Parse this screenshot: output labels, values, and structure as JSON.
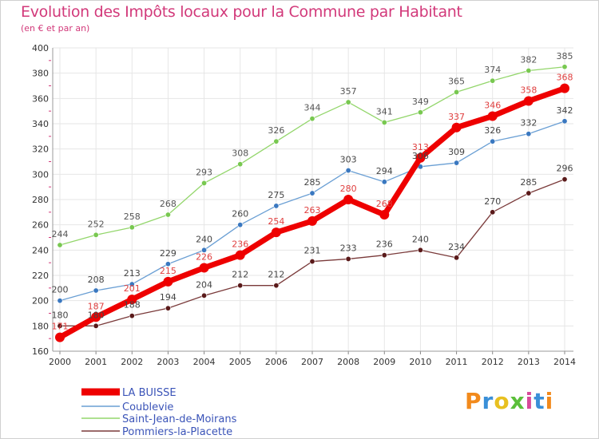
{
  "chart_data": {
    "type": "line",
    "title": "Evolution des Impôts locaux pour la Commune par Habitant",
    "subtitle": "(en € et par an)",
    "xlabel": "",
    "ylabel": "",
    "ylim": [
      160,
      400
    ],
    "yticks": [
      160,
      180,
      200,
      220,
      240,
      260,
      280,
      300,
      320,
      340,
      360,
      380,
      400
    ],
    "grid": true,
    "legend_position": "bottom-left",
    "x": [
      "2000",
      "2001",
      "2002",
      "2003",
      "2004",
      "2005",
      "2006",
      "2007",
      "2008",
      "2009",
      "2010",
      "2011",
      "2012",
      "2013",
      "2014"
    ],
    "series": [
      {
        "name": "LA BUISSE",
        "color": "#ee0000",
        "marker_color": "#ee0000",
        "values": [
          171,
          187,
          201,
          215,
          226,
          236,
          254,
          263,
          280,
          268,
          313,
          337,
          346,
          358,
          368
        ]
      },
      {
        "name": "Coublevie",
        "color": "#6a9fd4",
        "marker_color": "#3a78c0",
        "values": [
          200,
          208,
          213,
          229,
          240,
          260,
          275,
          285,
          303,
          294,
          306,
          309,
          326,
          332,
          342
        ]
      },
      {
        "name": "Saint-Jean-de-Moirans",
        "color": "#93d66b",
        "marker_color": "#78c850",
        "values": [
          244,
          252,
          258,
          268,
          293,
          308,
          326,
          344,
          357,
          341,
          349,
          365,
          374,
          382,
          385
        ]
      },
      {
        "name": "Pommiers-la-Placette",
        "color": "#7a3a3a",
        "marker_color": "#5a1a1a",
        "values": [
          180,
          180,
          188,
          194,
          204,
          212,
          212,
          231,
          233,
          236,
          240,
          234,
          270,
          285,
          296
        ]
      }
    ]
  },
  "logo": {
    "letters": [
      "P",
      "r",
      "o",
      "x",
      "i",
      "t",
      "i"
    ]
  }
}
